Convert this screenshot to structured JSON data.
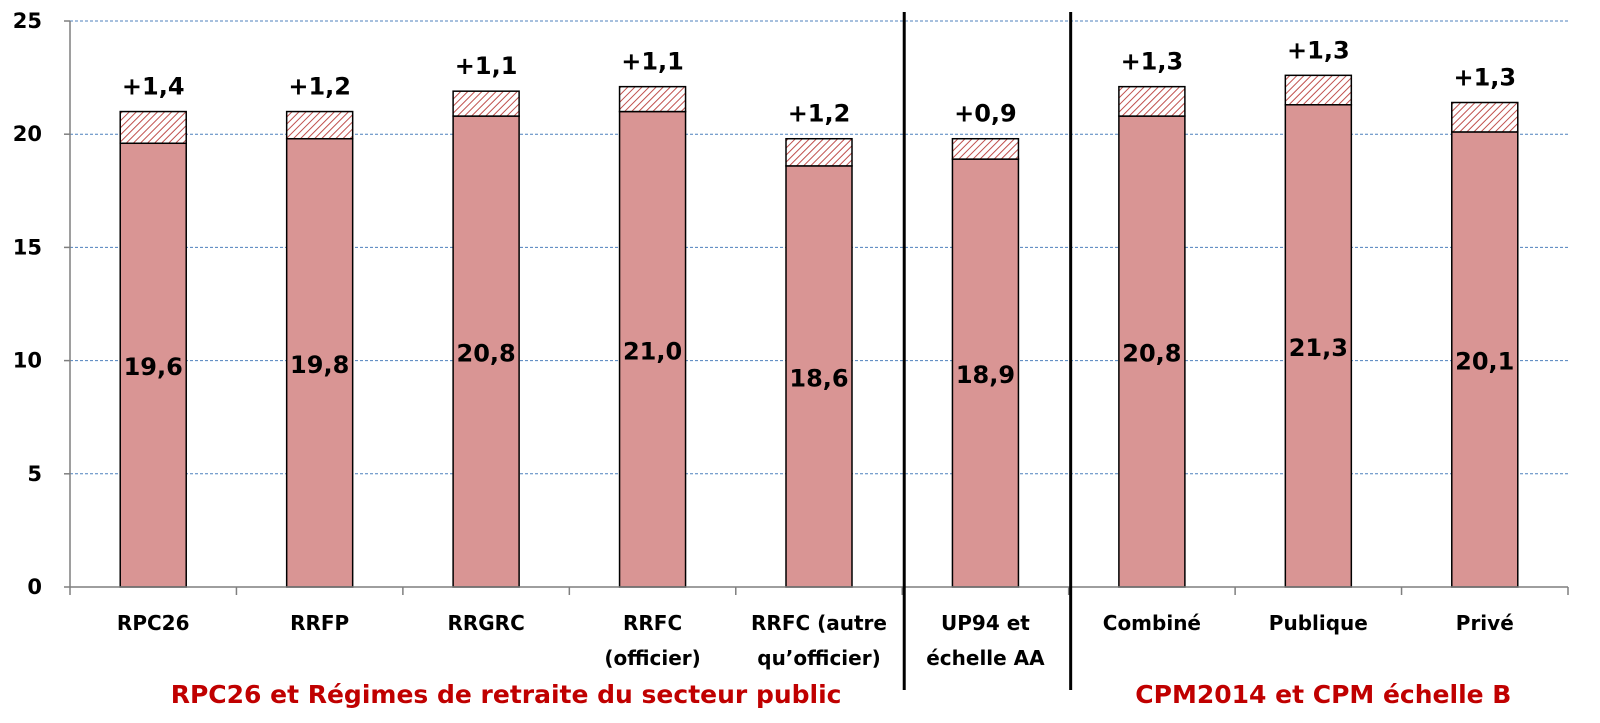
{
  "chart_data": {
    "type": "bar",
    "stacked": true,
    "ylim": [
      0,
      25
    ],
    "yticks": [
      0,
      5,
      10,
      15,
      20,
      25
    ],
    "grid": true,
    "categories": [
      {
        "lines": [
          "RPC26"
        ]
      },
      {
        "lines": [
          "RRFP"
        ]
      },
      {
        "lines": [
          "RRGRC"
        ]
      },
      {
        "lines": [
          "RRFC",
          "(officier)"
        ]
      },
      {
        "lines": [
          "RRFC (autre",
          "qu’officier)"
        ]
      },
      {
        "lines": [
          "UP94 et",
          "échelle AA"
        ]
      },
      {
        "lines": [
          "Combiné"
        ]
      },
      {
        "lines": [
          "Publique"
        ]
      },
      {
        "lines": [
          "Privé"
        ]
      }
    ],
    "series": [
      {
        "values": [
          19.6,
          19.8,
          20.8,
          21.0,
          18.6,
          18.9,
          20.8,
          21.3,
          20.1
        ],
        "color": "#d99594"
      },
      {
        "values": [
          1.4,
          1.2,
          1.1,
          1.1,
          1.2,
          0.9,
          1.3,
          1.3,
          1.3
        ],
        "color": "#c0504d",
        "pattern": "hatched"
      }
    ],
    "base_labels": [
      "19,6",
      "19,8",
      "20,8",
      "21,0",
      "18,6",
      "18,9",
      "20,8",
      "21,3",
      "20,1"
    ],
    "increment_labels": [
      "+1,4",
      "+1,2",
      "+1,1",
      "+1,1",
      "+1,2",
      "+0,9",
      "+1,3",
      "+1,3",
      "+1,3"
    ],
    "group_separators_after": [
      4,
      5
    ],
    "groups": [
      {
        "label": "RPC26 et Régimes de retraite du secteur public",
        "color": "#c00000"
      },
      {
        "label": "CPM2014 et CPM échelle B",
        "color": "#c00000"
      }
    ]
  }
}
